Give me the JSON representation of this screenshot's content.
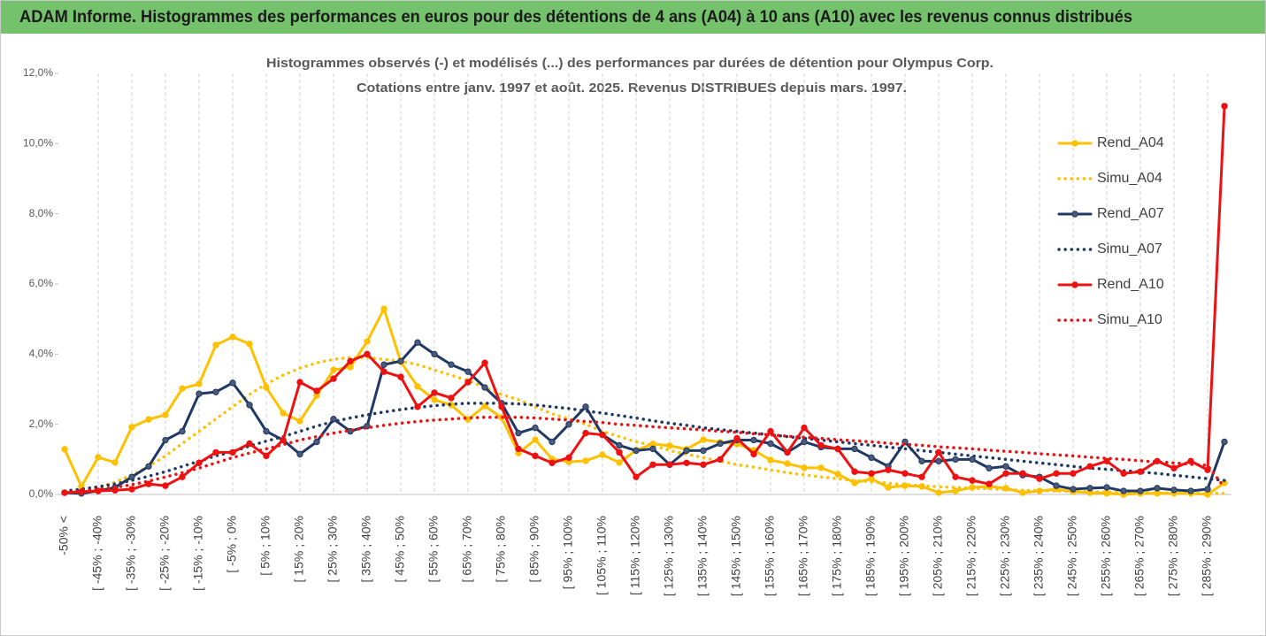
{
  "header": {
    "title": "ADAM Informe. Histogrammes des performances en euros pour des détentions de 4 ans (A04) à 10 ans (A10) avec les revenus connus distribués"
  },
  "chart_data": {
    "type": "line",
    "title": "Histogrammes observés (-) et modélisés (...) des performances par durées de détention pour Olympus Corp.",
    "subtitle": "Cotations entre janv. 1997 et août. 2025. Revenus DISTRIBUES depuis mars. 1997.",
    "categories": [
      "-50% <",
      null,
      "[ -45% ; -40%",
      null,
      "[ -35% ; -30%",
      null,
      "[ -25% ; -20%",
      null,
      "[ -15% ; -10%",
      null,
      "[ -5% ; 0%",
      null,
      "[ 5% ; 10%",
      null,
      "[ 15% ; 20%",
      null,
      "[ 25% ; 30%",
      null,
      "[ 35% ; 40%",
      null,
      "[ 45% ; 50%",
      null,
      "[ 55% ; 60%",
      null,
      "[ 65% ; 70%",
      null,
      "[ 75% ; 80%",
      null,
      "[ 85% ; 90%",
      null,
      "[ 95% ; 100%",
      null,
      "[ 105% ; 110%",
      null,
      "[ 115% ; 120%",
      null,
      "[ 125% ; 130%",
      null,
      "[ 135% ; 140%",
      null,
      "[ 145% ; 150%",
      null,
      "[ 155% ; 160%",
      null,
      "[ 165% ; 170%",
      null,
      "[ 175% ; 180%",
      null,
      "[ 185% ; 190%",
      null,
      "[ 195% ; 200%",
      null,
      "[ 205% ; 210%",
      null,
      "[ 215% ; 220%",
      null,
      "[ 225% ; 230%",
      null,
      "[ 235% ; 240%",
      null,
      "[ 245% ; 250%",
      null,
      "[ 255% ; 260%",
      null,
      "[ 265% ; 270%",
      null,
      "[ 275% ; 280%",
      null,
      "[ 285% ; 290%",
      null
    ],
    "series": [
      {
        "name": "Rend_A04",
        "color": "#ffc000",
        "style": "solid",
        "values": [
          1.29,
          0.23,
          1.06,
          0.91,
          1.92,
          2.14,
          2.27,
          3.02,
          3.15,
          4.26,
          4.49,
          4.29,
          3.05,
          2.32,
          2.09,
          2.82,
          3.55,
          3.63,
          4.36,
          5.29,
          3.78,
          3.08,
          2.7,
          2.55,
          2.14,
          2.52,
          2.19,
          1.18,
          1.56,
          1.01,
          0.93,
          0.96,
          1.13,
          0.91,
          1.26,
          1.44,
          1.39,
          1.29,
          1.56,
          1.49,
          1.44,
          1.26,
          0.98,
          0.88,
          0.76,
          0.76,
          0.58,
          0.33,
          0.45,
          0.2,
          0.25,
          0.23,
          0.05,
          0.1,
          0.2,
          0.23,
          0.18,
          0.05,
          0.1,
          0.15,
          0.08,
          0.05,
          0.03,
          0,
          0.03,
          0.03,
          0.03,
          0.03,
          0,
          0.33
        ]
      },
      {
        "name": "Simu_A04",
        "color": "#ffc000",
        "style": "dotted",
        "values": [
          0.05,
          0.1,
          0.2,
          0.35,
          0.55,
          0.8,
          1.1,
          1.45,
          1.8,
          2.15,
          2.5,
          2.85,
          3.15,
          3.4,
          3.6,
          3.75,
          3.85,
          3.9,
          3.9,
          3.85,
          3.8,
          3.7,
          3.55,
          3.4,
          3.25,
          3.05,
          2.85,
          2.7,
          2.5,
          2.3,
          2.15,
          2.0,
          1.8,
          1.65,
          1.5,
          1.4,
          1.25,
          1.15,
          1.05,
          0.95,
          0.85,
          0.78,
          0.7,
          0.62,
          0.56,
          0.5,
          0.45,
          0.4,
          0.36,
          0.32,
          0.28,
          0.25,
          0.22,
          0.2,
          0.18,
          0.16,
          0.14,
          0.12,
          0.11,
          0.1,
          0.09,
          0.08,
          0.07,
          0.06,
          0.05,
          0.05,
          0.04,
          0.04,
          0.03,
          0.03
        ]
      },
      {
        "name": "Rend_A07",
        "color": "#1f3864",
        "style": "solid",
        "values": [
          0.05,
          0.03,
          0.1,
          0.2,
          0.5,
          0.8,
          1.55,
          1.8,
          2.87,
          2.92,
          3.18,
          2.55,
          1.8,
          1.55,
          1.15,
          1.5,
          2.15,
          1.8,
          1.95,
          3.7,
          3.8,
          4.33,
          4.0,
          3.7,
          3.5,
          3.05,
          2.6,
          1.75,
          1.9,
          1.5,
          2.0,
          2.5,
          1.7,
          1.4,
          1.25,
          1.3,
          0.85,
          1.25,
          1.25,
          1.45,
          1.55,
          1.55,
          1.45,
          1.2,
          1.5,
          1.35,
          1.3,
          1.3,
          1.05,
          0.8,
          1.5,
          0.95,
          0.95,
          1.0,
          1.0,
          0.75,
          0.8,
          0.55,
          0.5,
          0.25,
          0.15,
          0.18,
          0.2,
          0.1,
          0.1,
          0.18,
          0.13,
          0.1,
          0.15,
          1.5
        ]
      },
      {
        "name": "Simu_A07",
        "color": "#1f3864",
        "style": "dotted",
        "values": [
          0.1,
          0.15,
          0.22,
          0.3,
          0.4,
          0.52,
          0.65,
          0.8,
          0.95,
          1.1,
          1.22,
          1.38,
          1.52,
          1.65,
          1.8,
          1.95,
          2.08,
          2.18,
          2.27,
          2.35,
          2.42,
          2.48,
          2.53,
          2.57,
          2.6,
          2.6,
          2.6,
          2.58,
          2.55,
          2.5,
          2.45,
          2.38,
          2.32,
          2.25,
          2.18,
          2.1,
          2.03,
          1.97,
          1.9,
          1.85,
          1.8,
          1.75,
          1.7,
          1.65,
          1.6,
          1.55,
          1.5,
          1.45,
          1.4,
          1.35,
          1.3,
          1.25,
          1.2,
          1.15,
          1.1,
          1.05,
          1.0,
          0.95,
          0.9,
          0.85,
          0.8,
          0.75,
          0.72,
          0.68,
          0.64,
          0.6,
          0.55,
          0.5,
          0.45,
          0.4
        ]
      },
      {
        "name": "Rend_A10",
        "color": "#ee1111",
        "style": "solid",
        "values": [
          0.05,
          0.08,
          0.1,
          0.12,
          0.15,
          0.3,
          0.25,
          0.5,
          0.9,
          1.2,
          1.2,
          1.45,
          1.1,
          1.55,
          3.2,
          2.95,
          3.3,
          3.8,
          4.0,
          3.5,
          3.35,
          2.5,
          2.9,
          2.75,
          3.2,
          3.75,
          2.5,
          1.3,
          1.1,
          0.9,
          1.05,
          1.75,
          1.7,
          1.2,
          0.5,
          0.85,
          0.85,
          0.9,
          0.85,
          1.0,
          1.6,
          1.15,
          1.8,
          1.2,
          1.9,
          1.4,
          1.3,
          0.65,
          0.6,
          0.7,
          0.6,
          0.5,
          1.2,
          0.5,
          0.4,
          0.3,
          0.6,
          0.6,
          0.45,
          0.6,
          0.6,
          0.8,
          0.95,
          0.6,
          0.65,
          0.95,
          0.75,
          0.95,
          0.7,
          11.07
        ]
      },
      {
        "name": "Simu_A10",
        "color": "#ee1111",
        "style": "dotted",
        "values": [
          0.05,
          0.1,
          0.15,
          0.2,
          0.28,
          0.38,
          0.5,
          0.62,
          0.75,
          0.9,
          1.05,
          1.18,
          1.3,
          1.42,
          1.55,
          1.65,
          1.75,
          1.83,
          1.9,
          1.97,
          2.03,
          2.08,
          2.12,
          2.15,
          2.18,
          2.2,
          2.2,
          2.2,
          2.18,
          2.15,
          2.12,
          2.08,
          2.05,
          2.0,
          1.97,
          1.93,
          1.9,
          1.87,
          1.84,
          1.8,
          1.77,
          1.73,
          1.7,
          1.66,
          1.63,
          1.6,
          1.56,
          1.53,
          1.5,
          1.46,
          1.43,
          1.4,
          1.36,
          1.33,
          1.3,
          1.26,
          1.23,
          1.2,
          1.16,
          1.13,
          1.1,
          1.06,
          1.03,
          1.0,
          0.96,
          0.93,
          0.9,
          0.86,
          0.83,
          0.2
        ]
      }
    ],
    "ylim": [
      0,
      12
    ],
    "yticks": [
      {
        "value": 0,
        "label": "0,0%"
      },
      {
        "value": 2,
        "label": "2,0%"
      },
      {
        "value": 4,
        "label": "4,0%"
      },
      {
        "value": 6,
        "label": "6,0%"
      },
      {
        "value": 8,
        "label": "8,0%"
      },
      {
        "value": 10,
        "label": "10,0%"
      },
      {
        "value": 12,
        "label": "12,0%"
      }
    ],
    "legend": "right"
  }
}
